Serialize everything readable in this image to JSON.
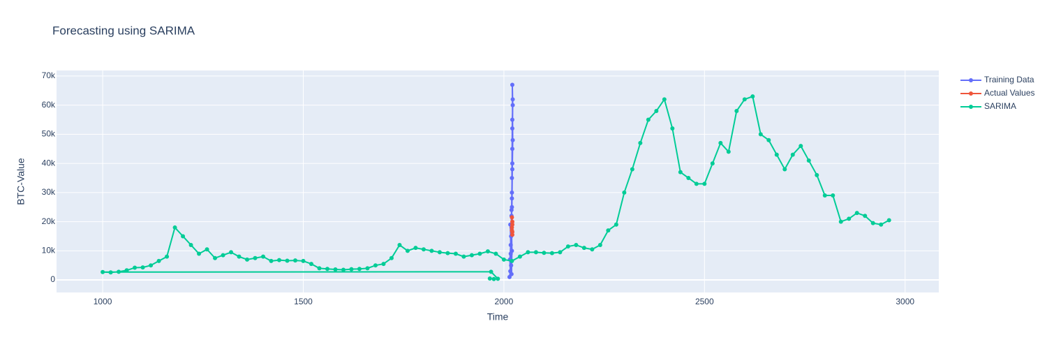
{
  "chart_data": {
    "type": "line",
    "title": "Forecasting using SARIMA",
    "x_label": "Time",
    "y_label": "BTC-Value",
    "xlim": [
      885,
      3084
    ],
    "ylim": [
      -4300,
      71900
    ],
    "xticks": [
      1000,
      1500,
      2000,
      2500,
      3000
    ],
    "yticks": [
      {
        "value": 0,
        "label": "0"
      },
      {
        "value": 10000,
        "label": "10k"
      },
      {
        "value": 20000,
        "label": "20k"
      },
      {
        "value": 30000,
        "label": "30k"
      },
      {
        "value": 40000,
        "label": "40k"
      },
      {
        "value": 50000,
        "label": "50k"
      },
      {
        "value": 60000,
        "label": "60k"
      },
      {
        "value": 70000,
        "label": "70k"
      }
    ],
    "grid": true,
    "legend": "right",
    "series": [
      {
        "name": "Training Data",
        "color": "#636efa",
        "x": [
          2014,
          2016,
          2015,
          2017,
          2016,
          2018,
          2017,
          2019,
          2018,
          2020,
          2019,
          2021,
          2020,
          2021,
          2022,
          2021,
          2022,
          2021,
          2020,
          2021,
          2022,
          2021,
          2020,
          2019,
          2020,
          2019
        ],
        "values": [
          1000,
          3000,
          7000,
          12000,
          19000,
          5000,
          9000,
          24000,
          15000,
          30000,
          22000,
          40000,
          35000,
          55000,
          60000,
          67000,
          48000,
          38000,
          25000,
          45000,
          62000,
          52000,
          28000,
          18000,
          10000,
          2000
        ]
      },
      {
        "name": "Actual Values",
        "color": "#ef553b",
        "x": [
          2021,
          2020,
          2021,
          2020,
          2021,
          2020,
          2021
        ],
        "values": [
          15500,
          17000,
          19000,
          21500,
          20000,
          18000,
          16500
        ]
      },
      {
        "name": "SARIMA",
        "color": "#00cc96",
        "x": [
          1965,
          1975,
          1985,
          1968,
          1000,
          1020,
          1040,
          1060,
          1080,
          1100,
          1120,
          1140,
          1160,
          1180,
          1200,
          1220,
          1240,
          1260,
          1280,
          1300,
          1320,
          1340,
          1360,
          1380,
          1400,
          1420,
          1440,
          1460,
          1480,
          1500,
          1520,
          1540,
          1560,
          1580,
          1600,
          1620,
          1640,
          1660,
          1680,
          1700,
          1720,
          1740,
          1760,
          1780,
          1800,
          1820,
          1840,
          1860,
          1880,
          1900,
          1920,
          1940,
          1960,
          1980,
          2000,
          2020,
          2040,
          2060,
          2080,
          2100,
          2120,
          2140,
          2160,
          2180,
          2200,
          2220,
          2240,
          2260,
          2280,
          2300,
          2320,
          2340,
          2360,
          2380,
          2400,
          2420,
          2440,
          2460,
          2480,
          2500,
          2520,
          2540,
          2560,
          2580,
          2600,
          2620,
          2640,
          2660,
          2680,
          2700,
          2720,
          2740,
          2760,
          2780,
          2800,
          2820,
          2840,
          2860,
          2880,
          2900,
          2920,
          2940,
          2960
        ],
        "values": [
          500,
          300,
          400,
          2800,
          2700,
          2600,
          2800,
          3300,
          4200,
          4300,
          5000,
          6500,
          8000,
          18000,
          15000,
          12000,
          9000,
          10500,
          7500,
          8500,
          9500,
          8000,
          7000,
          7500,
          8000,
          6500,
          6800,
          6600,
          6700,
          6500,
          5500,
          4000,
          3800,
          3600,
          3500,
          3700,
          3800,
          4000,
          5000,
          5500,
          7500,
          12000,
          10000,
          11000,
          10500,
          10000,
          9500,
          9200,
          9000,
          8000,
          8500,
          9000,
          9800,
          9000,
          7000,
          6500,
          8000,
          9500,
          9500,
          9300,
          9200,
          9500,
          11500,
          12000,
          11000,
          10500,
          12000,
          17000,
          19000,
          30000,
          38000,
          47000,
          55000,
          58000,
          62000,
          52000,
          37000,
          35000,
          33000,
          33000,
          40000,
          47000,
          44000,
          58000,
          62000,
          63000,
          50000,
          48000,
          43000,
          38000,
          43000,
          46000,
          41000,
          36000,
          29000,
          29000,
          20000,
          21000,
          23000,
          22000,
          19500,
          19000,
          20500
        ]
      }
    ]
  }
}
